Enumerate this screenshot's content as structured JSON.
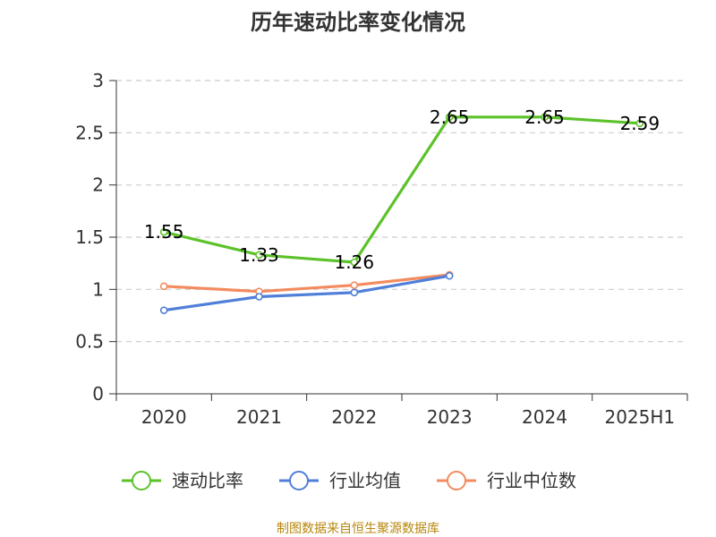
{
  "chart_data": {
    "type": "line",
    "title": "历年速动比率变化情况",
    "categories": [
      "2020",
      "2021",
      "2022",
      "2023",
      "2024",
      "2025H1"
    ],
    "y_ticks": [
      "0",
      "0.5",
      "1",
      "1.5",
      "2",
      "2.5",
      "3"
    ],
    "ylim": [
      0,
      3
    ],
    "grid": true,
    "legend_position": "bottom",
    "series": [
      {
        "name": "速动比率",
        "color": "#5cc22a",
        "values": [
          1.55,
          1.33,
          1.26,
          2.65,
          2.65,
          2.59
        ],
        "labels": [
          "1.55",
          "1.33",
          "1.26",
          "2.65",
          "2.65",
          "2.59"
        ],
        "show_labels": true
      },
      {
        "name": "行业均值",
        "color": "#4f7fd8",
        "values": [
          0.8,
          0.93,
          0.97,
          1.13,
          null,
          null
        ],
        "show_labels": false
      },
      {
        "name": "行业中位数",
        "color": "#f38b5f",
        "values": [
          1.03,
          0.98,
          1.04,
          1.14,
          null,
          null
        ],
        "show_labels": false
      }
    ]
  },
  "footer": {
    "source": "制图数据来自恒生聚源数据库"
  }
}
